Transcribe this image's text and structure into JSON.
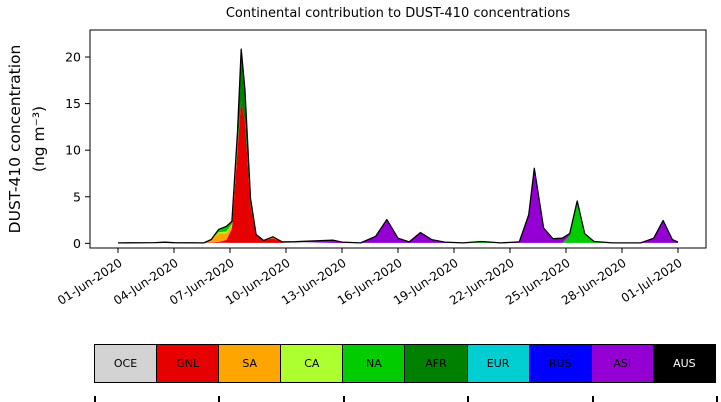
{
  "title": "Continental contribution to DUST-410 concentrations",
  "y_axis": {
    "label_line1": "DUST-410 concentration",
    "label_line2": "(ng m⁻³)",
    "ticks": [
      0,
      5,
      10,
      15,
      20
    ]
  },
  "x_axis": {
    "tick_days": [
      0,
      3,
      6,
      9,
      12,
      15,
      18,
      21,
      24,
      27,
      30
    ],
    "tick_labels": [
      "01-Jun-2020",
      "04-Jun-2020",
      "07-Jun-2020",
      "10-Jun-2020",
      "13-Jun-2020",
      "16-Jun-2020",
      "19-Jun-2020",
      "22-Jun-2020",
      "25-Jun-2020",
      "28-Jun-2020",
      "01-Jul-2020"
    ]
  },
  "chart_data": {
    "type": "area",
    "stacked": true,
    "title": "Continental contribution to DUST-410 concentrations",
    "xlabel": "",
    "ylabel": "DUST-410 concentration (ng m⁻³)",
    "x_unit": "days since 01-Jun-2020",
    "xlim_days": [
      -1.5,
      31.5
    ],
    "ylim": [
      -0.5,
      22.9
    ],
    "grid": false,
    "legend_position": "bottom-table",
    "outline_color": "#000000",
    "x": [
      0,
      2,
      2.5,
      3,
      4.6,
      5,
      5.4,
      5.8,
      6.1,
      6.4,
      6.6,
      6.8,
      7.1,
      7.4,
      7.8,
      8.3,
      8.8,
      9.5,
      11.5,
      12,
      13,
      13.8,
      14.4,
      15,
      15.6,
      16.2,
      16.8,
      17.5,
      18.5,
      19,
      19.5,
      20.5,
      21.5,
      22,
      22.3,
      22.8,
      23.3,
      23.8,
      24.2,
      24.6,
      25,
      25.5,
      26.5,
      28,
      28.7,
      29.2,
      29.7,
      30
    ],
    "series": [
      {
        "name": "OCE",
        "color": "#d3d3d3",
        "values": [
          0.05,
          0.08,
          0.12,
          0.07,
          0.05,
          0.06,
          0.06,
          0.06,
          0.05,
          0.05,
          0.05,
          0.05,
          0.05,
          0.05,
          0.05,
          0.05,
          0.05,
          0.18,
          0.05,
          0.05,
          0.05,
          0.05,
          0.05,
          0.05,
          0.05,
          0.05,
          0.05,
          0.05,
          0.05,
          0.05,
          0.05,
          0.05,
          0.05,
          0.05,
          0.05,
          0.05,
          0.05,
          0.05,
          0.05,
          0.05,
          0.05,
          0.05,
          0.05,
          0.05,
          0.05,
          0.05,
          0.05,
          0.05
        ]
      },
      {
        "name": "GNL",
        "color": "#e60000",
        "values": [
          0,
          0,
          0,
          0,
          0,
          0.05,
          0.1,
          0.3,
          1.5,
          10,
          15.3,
          13,
          4,
          0.8,
          0.25,
          0.5,
          0.1,
          0,
          0,
          0,
          0,
          0,
          0,
          0,
          0,
          0,
          0,
          0,
          0,
          0,
          0,
          0,
          0,
          0,
          0,
          0,
          0,
          0,
          0,
          0,
          0,
          0,
          0,
          0,
          0,
          0,
          0,
          0
        ]
      },
      {
        "name": "SA",
        "color": "#ffa500",
        "values": [
          0,
          0,
          0,
          0,
          0,
          0.3,
          0.9,
          0.7,
          0.4,
          0.2,
          0,
          0,
          0,
          0,
          0,
          0.15,
          0,
          0,
          0,
          0,
          0,
          0,
          0,
          0,
          0,
          0,
          0,
          0,
          0,
          0,
          0,
          0,
          0,
          0,
          0,
          0,
          0,
          0,
          0,
          0,
          0,
          0,
          0,
          0,
          0,
          0,
          0,
          0
        ]
      },
      {
        "name": "CA",
        "color": "#adff2f",
        "values": [
          0,
          0,
          0,
          0,
          0,
          0,
          0.15,
          0.2,
          0.1,
          0,
          0,
          0,
          0,
          0,
          0,
          0,
          0,
          0,
          0,
          0,
          0,
          0,
          0,
          0,
          0,
          0,
          0,
          0,
          0,
          0,
          0,
          0,
          0,
          0,
          0,
          0,
          0,
          0,
          0,
          0,
          0,
          0,
          0,
          0,
          0,
          0,
          0,
          0
        ]
      },
      {
        "name": "NA",
        "color": "#00cc00",
        "values": [
          0,
          0,
          0,
          0,
          0,
          0,
          0.3,
          0.55,
          0.3,
          0.2,
          0,
          0,
          0,
          0,
          0,
          0,
          0,
          0,
          0,
          0,
          0,
          0,
          0,
          0,
          0,
          0,
          0,
          0,
          0,
          0.08,
          0.15,
          0,
          0,
          0,
          0,
          0,
          0,
          0,
          0.8,
          4.5,
          1.0,
          0.15,
          0,
          0,
          0,
          0,
          0,
          0
        ]
      },
      {
        "name": "AFR",
        "color": "#008000",
        "values": [
          0,
          0,
          0,
          0,
          0,
          0,
          0,
          0,
          0,
          1.5,
          5.5,
          3.5,
          0.8,
          0.1,
          0,
          0,
          0,
          0,
          0,
          0,
          0,
          0,
          0,
          0,
          0,
          0,
          0,
          0,
          0,
          0,
          0,
          0,
          0,
          0,
          0,
          0,
          0,
          0,
          0,
          0,
          0,
          0,
          0,
          0,
          0,
          0,
          0,
          0
        ]
      },
      {
        "name": "EUR",
        "color": "#00ced1",
        "values": [
          0,
          0,
          0,
          0,
          0,
          0,
          0,
          0,
          0,
          0,
          0,
          0,
          0,
          0,
          0,
          0,
          0,
          0,
          0,
          0,
          0,
          0,
          0,
          0,
          0,
          0,
          0,
          0,
          0,
          0,
          0,
          0,
          0,
          0,
          0,
          0,
          0,
          0,
          0,
          0,
          0,
          0,
          0,
          0,
          0,
          0,
          0,
          0
        ]
      },
      {
        "name": "RUS",
        "color": "#0000ff",
        "values": [
          0,
          0,
          0,
          0,
          0,
          0,
          0,
          0,
          0,
          0,
          0,
          0,
          0,
          0,
          0,
          0,
          0,
          0,
          0,
          0,
          0,
          0,
          0,
          0,
          0,
          0,
          0,
          0,
          0,
          0,
          0,
          0,
          0,
          0,
          0,
          0,
          0,
          0,
          0,
          0,
          0,
          0,
          0,
          0,
          0,
          0,
          0,
          0
        ]
      },
      {
        "name": "ASI",
        "color": "#9400d3",
        "values": [
          0,
          0,
          0,
          0,
          0,
          0,
          0,
          0,
          0,
          0,
          0,
          0,
          0,
          0,
          0,
          0,
          0,
          0,
          0.3,
          0.08,
          0,
          0.7,
          2.5,
          0.5,
          0.1,
          1.1,
          0.35,
          0.08,
          0,
          0,
          0,
          0,
          0.1,
          3.0,
          8.0,
          1.6,
          0.45,
          0.5,
          0.2,
          0,
          0,
          0,
          0,
          0,
          0.5,
          2.4,
          0.35,
          0.08
        ]
      },
      {
        "name": "AUS",
        "color": "#000000",
        "values": [
          0,
          0,
          0,
          0,
          0,
          0,
          0,
          0,
          0,
          0,
          0,
          0,
          0,
          0,
          0,
          0,
          0,
          0,
          0,
          0,
          0,
          0,
          0,
          0,
          0,
          0,
          0,
          0,
          0,
          0,
          0,
          0,
          0,
          0,
          0,
          0,
          0,
          0,
          0,
          0,
          0,
          0,
          0,
          0,
          0,
          0,
          0,
          0
        ]
      }
    ]
  }
}
